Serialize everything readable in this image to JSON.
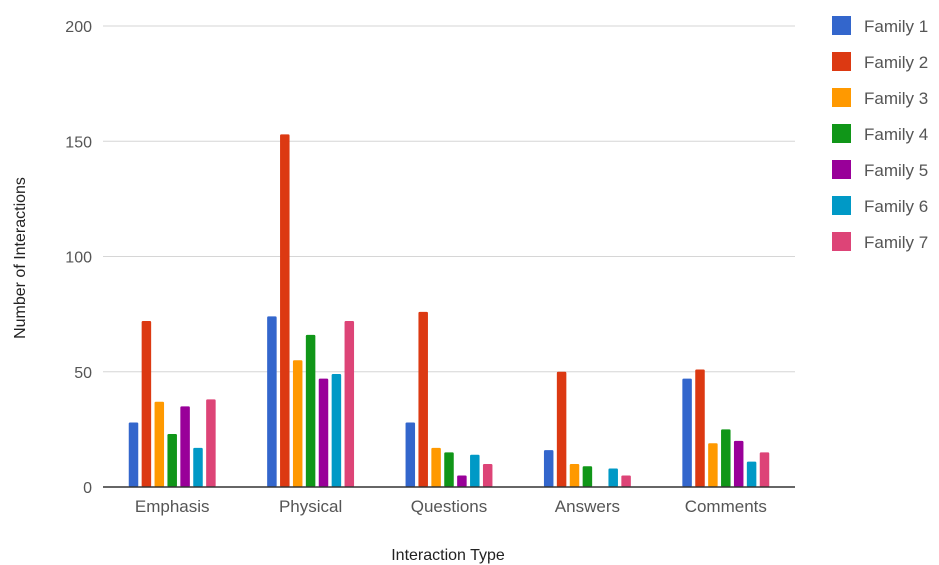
{
  "chart_data": {
    "type": "bar",
    "xlabel": "Interaction Type",
    "ylabel": "Number of Interactions",
    "ylim": [
      0,
      200
    ],
    "yticks": [
      0,
      50,
      100,
      150,
      200
    ],
    "grid": true,
    "legend_position": "right",
    "categories": [
      "Emphasis",
      "Physical",
      "Questions",
      "Answers",
      "Comments"
    ],
    "series": [
      {
        "name": "Family 1",
        "color": "#3366cc",
        "values": [
          28,
          74,
          28,
          16,
          47
        ]
      },
      {
        "name": "Family 2",
        "color": "#dc3912",
        "values": [
          72,
          153,
          76,
          50,
          51
        ]
      },
      {
        "name": "Family 3",
        "color": "#ff9900",
        "values": [
          37,
          55,
          17,
          10,
          19
        ]
      },
      {
        "name": "Family 4",
        "color": "#109618",
        "values": [
          23,
          66,
          15,
          9,
          25
        ]
      },
      {
        "name": "Family 5",
        "color": "#990099",
        "values": [
          35,
          47,
          5,
          0,
          20
        ]
      },
      {
        "name": "Family 6",
        "color": "#0099c6",
        "values": [
          17,
          49,
          14,
          8,
          11
        ]
      },
      {
        "name": "Family 7",
        "color": "#dd4477",
        "values": [
          38,
          72,
          10,
          5,
          15
        ]
      }
    ]
  }
}
